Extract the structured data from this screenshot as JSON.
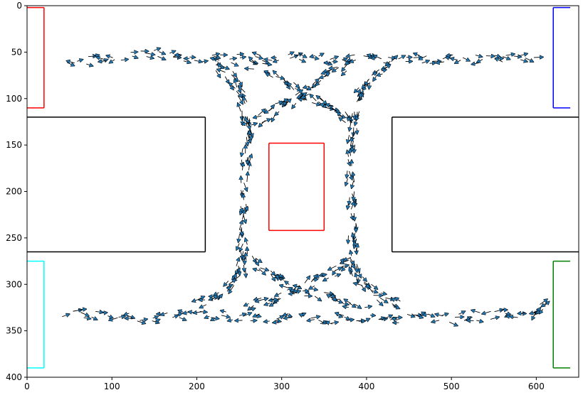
{
  "chart_data": {
    "type": "scatter",
    "title": "",
    "xlabel": "",
    "ylabel": "",
    "xlim": [
      0,
      650
    ],
    "ylim": [
      400,
      0
    ],
    "y_inverted": true,
    "grid": false,
    "legend": "none",
    "xticks": [
      0,
      100,
      200,
      300,
      400,
      500,
      600
    ],
    "yticks": [
      0,
      50,
      100,
      150,
      200,
      250,
      300,
      350,
      400
    ],
    "xtick_labels": [
      "0",
      "100",
      "200",
      "300",
      "400",
      "500",
      "600"
    ],
    "ytick_labels": [
      "0",
      "50",
      "100",
      "150",
      "200",
      "250",
      "300",
      "350",
      "400"
    ],
    "rectangles": [
      {
        "name": "red-left-zone",
        "color": "#ff0000",
        "x0": 0,
        "x1": 20,
        "y0": 2,
        "y1": 110,
        "sides": [
          "top",
          "right",
          "bottom"
        ]
      },
      {
        "name": "blue-right-zone",
        "color": "#0000ff",
        "x0": 620,
        "x1": 640,
        "y0": 2,
        "y1": 110,
        "sides": [
          "top",
          "left",
          "bottom"
        ]
      },
      {
        "name": "cyan-left-zone",
        "color": "#00ffff",
        "x0": 0,
        "x1": 20,
        "y0": 275,
        "y1": 390,
        "sides": [
          "top",
          "right",
          "bottom"
        ]
      },
      {
        "name": "green-right-zone",
        "color": "#008000",
        "x0": 620,
        "x1": 640,
        "y0": 275,
        "y1": 390,
        "sides": [
          "top",
          "left",
          "bottom"
        ]
      },
      {
        "name": "left-obstacle",
        "color": "#000000",
        "x0": 0,
        "x1": 210,
        "y0": 120,
        "y1": 265,
        "sides": [
          "top",
          "right",
          "bottom"
        ]
      },
      {
        "name": "right-obstacle",
        "color": "#000000",
        "x0": 430,
        "x1": 650,
        "y0": 120,
        "y1": 265,
        "sides": [
          "top",
          "left",
          "bottom"
        ]
      },
      {
        "name": "center-zone",
        "color": "#ff0000",
        "x0": 285,
        "x1": 350,
        "y0": 148,
        "y1": 242,
        "sides": [
          "top",
          "right",
          "bottom",
          "left"
        ]
      }
    ],
    "marker_color": "#1f77b4",
    "arrow_color": "#000000",
    "paths": [
      {
        "name": "top-corridor",
        "points": [
          [
            45,
            60
          ],
          [
            100,
            57
          ],
          [
            150,
            52
          ],
          [
            200,
            56
          ],
          [
            250,
            57
          ],
          [
            300,
            56
          ],
          [
            350,
            56
          ],
          [
            400,
            57
          ],
          [
            450,
            57
          ],
          [
            500,
            58
          ],
          [
            550,
            57
          ],
          [
            600,
            56
          ]
        ]
      },
      {
        "name": "bottom-corridor",
        "points": [
          [
            40,
            330
          ],
          [
            100,
            332
          ],
          [
            150,
            336
          ],
          [
            200,
            334
          ],
          [
            250,
            334
          ],
          [
            300,
            336
          ],
          [
            350,
            338
          ],
          [
            400,
            338
          ],
          [
            450,
            337
          ],
          [
            500,
            336
          ],
          [
            550,
            333
          ],
          [
            600,
            330
          ],
          [
            610,
            323
          ]
        ]
      },
      {
        "name": "left-vertical",
        "points": [
          [
            220,
            60
          ],
          [
            240,
            75
          ],
          [
            255,
            100
          ],
          [
            260,
            130
          ],
          [
            258,
            160
          ],
          [
            256,
            200
          ],
          [
            255,
            240
          ],
          [
            255,
            270
          ],
          [
            250,
            290
          ],
          [
            230,
            310
          ],
          [
            200,
            322
          ]
        ]
      },
      {
        "name": "right-vertical",
        "points": [
          [
            430,
            60
          ],
          [
            405,
            75
          ],
          [
            392,
            100
          ],
          [
            384,
            130
          ],
          [
            382,
            160
          ],
          [
            382,
            200
          ],
          [
            384,
            240
          ],
          [
            383,
            270
          ],
          [
            390,
            295
          ],
          [
            410,
            310
          ],
          [
            440,
            320
          ]
        ]
      },
      {
        "name": "upper-cross-a",
        "points": [
          [
            265,
            62
          ],
          [
            300,
            80
          ],
          [
            330,
            97
          ],
          [
            360,
            110
          ],
          [
            380,
            125
          ]
        ]
      },
      {
        "name": "upper-cross-b",
        "points": [
          [
            380,
            62
          ],
          [
            350,
            78
          ],
          [
            320,
            97
          ],
          [
            290,
            112
          ],
          [
            265,
            130
          ]
        ]
      },
      {
        "name": "lower-cross-a",
        "points": [
          [
            260,
            270
          ],
          [
            290,
            290
          ],
          [
            320,
            305
          ],
          [
            360,
            315
          ],
          [
            395,
            325
          ]
        ]
      },
      {
        "name": "lower-cross-b",
        "points": [
          [
            385,
            270
          ],
          [
            355,
            290
          ],
          [
            325,
            305
          ],
          [
            290,
            315
          ],
          [
            260,
            325
          ]
        ]
      }
    ]
  }
}
